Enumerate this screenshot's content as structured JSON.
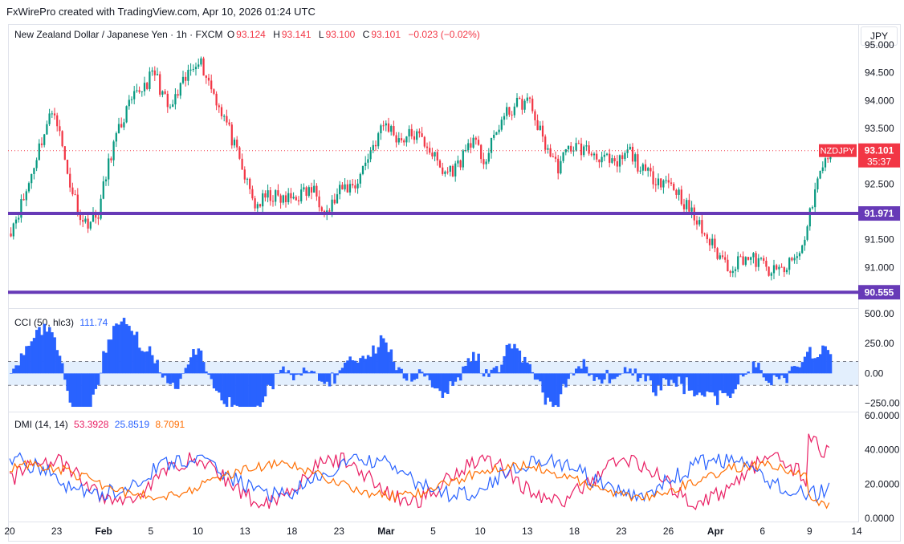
{
  "header": {
    "watermark": "FxWirePro created with TradingView.com, Apr 10, 2026 01:24 UTC"
  },
  "symbol": {
    "name": "New Zealand Dollar / Japanese Yen · 1h · FXCM",
    "o_key": "O",
    "o": "93.124",
    "h_key": "H",
    "h": "93.141",
    "l_key": "L",
    "l": "93.100",
    "c_key": "C",
    "c": "93.101",
    "change": "−0.023 (−0.02%)",
    "currency_button": "JPY"
  },
  "colors": {
    "up": "#089981",
    "down": "#f23645",
    "level": "#673ab7",
    "cci": "#2962ff",
    "cci_band": "#e3effd",
    "plus_di": "#2962ff",
    "minus_di": "#e91e63",
    "adx": "#ff6d00"
  },
  "price_axis": {
    "ticks": [
      "95.000",
      "94.500",
      "94.000",
      "93.500",
      "93.000",
      "92.500",
      "92.000",
      "91.500",
      "91.000"
    ]
  },
  "price_labels": {
    "symbol_tag": "NZDJPY",
    "last_price": "93.101",
    "countdown": "35:37"
  },
  "levels": [
    {
      "value": 91.971,
      "label": "91.971"
    },
    {
      "value": 90.555,
      "label": "90.555"
    }
  ],
  "cci": {
    "title": "CCI (50, hlc3)",
    "value": "111.74",
    "axis_ticks": [
      "500.00",
      "250.00",
      "0.00",
      "−250.00"
    ],
    "bands": [
      100,
      -100
    ]
  },
  "dmi": {
    "title": "DMI (14, 14)",
    "plus": "53.3928",
    "minus": "25.8519",
    "adx": "8.7091",
    "axis_ticks": [
      "60.0000",
      "40.0000",
      "20.0000",
      "0.0000"
    ]
  },
  "time_axis": {
    "labels": [
      "20",
      "23",
      "Feb",
      "5",
      "10",
      "13",
      "18",
      "23",
      "Mar",
      "5",
      "10",
      "13",
      "18",
      "23",
      "26",
      "Apr",
      "6",
      "9",
      "14"
    ]
  },
  "chart_data": {
    "type": "candlestick",
    "series_description": "NZDJPY 1h candles, approximate close path at daily anchors",
    "x": [
      "Jan 20",
      "Jan 21",
      "Jan 22",
      "Jan 23",
      "Jan 26",
      "Jan 27",
      "Jan 28",
      "Jan 29",
      "Jan 30",
      "Feb 2",
      "Feb 3",
      "Feb 4",
      "Feb 5",
      "Feb 6",
      "Feb 9",
      "Feb 10",
      "Feb 11",
      "Feb 12",
      "Feb 13",
      "Feb 16",
      "Feb 17",
      "Feb 18",
      "Feb 19",
      "Feb 20",
      "Feb 23",
      "Feb 24",
      "Feb 25",
      "Feb 26",
      "Feb 27",
      "Mar 2",
      "Mar 3",
      "Mar 4",
      "Mar 5",
      "Mar 6",
      "Mar 9",
      "Mar 10",
      "Mar 11",
      "Mar 12",
      "Mar 13",
      "Mar 16",
      "Mar 17",
      "Mar 18",
      "Mar 19",
      "Mar 20",
      "Mar 23",
      "Mar 24",
      "Mar 25",
      "Mar 26",
      "Mar 27",
      "Mar 30",
      "Mar 31",
      "Apr 1",
      "Apr 2",
      "Apr 3",
      "Apr 6",
      "Apr 7",
      "Apr 8",
      "Apr 9"
    ],
    "close": [
      91.7,
      92.3,
      93.2,
      93.9,
      92.6,
      91.8,
      91.9,
      93.1,
      93.8,
      94.2,
      94.5,
      93.8,
      94.3,
      94.8,
      94.2,
      93.6,
      92.8,
      92.1,
      92.3,
      92.2,
      92.3,
      92.4,
      92.0,
      92.4,
      92.5,
      93.1,
      93.6,
      93.3,
      93.4,
      93.2,
      92.7,
      92.8,
      93.3,
      92.9,
      93.6,
      93.9,
      94.0,
      93.3,
      92.8,
      93.2,
      93.1,
      93.0,
      92.8,
      93.1,
      92.7,
      92.6,
      92.5,
      92.1,
      91.7,
      91.3,
      91.0,
      91.2,
      91.1,
      90.9,
      91.0,
      91.3,
      92.5,
      93.1
    ],
    "ylim": [
      90.4,
      95.0
    ],
    "cci_range": [
      -300,
      520
    ],
    "dmi_range": [
      0,
      60
    ]
  }
}
